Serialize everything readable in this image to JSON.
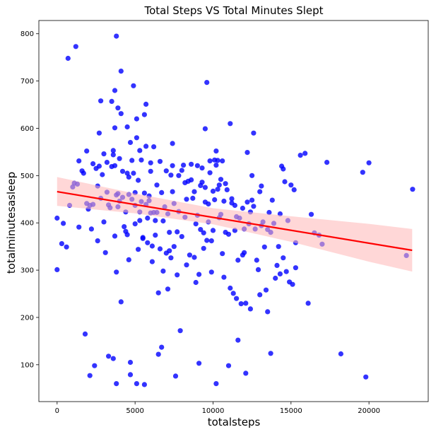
{
  "chart_data": {
    "type": "scatter",
    "title": "Total Steps VS Total Minutes Slept",
    "xlabel": "totalsteps",
    "ylabel": "totalminutesasleep",
    "xlim": [
      -1170,
      23800
    ],
    "ylim": [
      22,
      828
    ],
    "x_ticks": [
      0,
      5000,
      10000,
      15000,
      20000
    ],
    "y_ticks": [
      100,
      200,
      300,
      400,
      500,
      600,
      700,
      800
    ],
    "x_tick_labels": [
      "0",
      "5000",
      "10000",
      "15000",
      "20000"
    ],
    "y_tick_labels": [
      "100",
      "200",
      "300",
      "400",
      "500",
      "600",
      "700",
      "800"
    ],
    "grid": false,
    "colors": {
      "points": "#0000ff",
      "regression": "#ff0000",
      "ci_band": "#ffb6b6"
    },
    "regression": {
      "x": [
        0,
        22770
      ],
      "y": [
        466,
        342
      ]
    },
    "confidence_band": {
      "x": [
        0,
        5000,
        10000,
        15000,
        20000,
        22770
      ],
      "upper": [
        497,
        462,
        431,
        414,
        398,
        387
      ],
      "lower": [
        436,
        420,
        397,
        360,
        318,
        297
      ]
    },
    "points": [
      [
        0,
        301
      ],
      [
        0,
        410
      ],
      [
        300,
        356
      ],
      [
        400,
        399
      ],
      [
        600,
        349
      ],
      [
        700,
        748
      ],
      [
        800,
        437
      ],
      [
        1000,
        476
      ],
      [
        1100,
        484
      ],
      [
        1200,
        773
      ],
      [
        1300,
        482
      ],
      [
        1400,
        531
      ],
      [
        1400,
        391
      ],
      [
        1600,
        510
      ],
      [
        1700,
        505
      ],
      [
        1800,
        165
      ],
      [
        1900,
        552
      ],
      [
        1900,
        441
      ],
      [
        2000,
        429
      ],
      [
        2100,
        77
      ],
      [
        2100,
        437
      ],
      [
        2200,
        387
      ],
      [
        2300,
        439
      ],
      [
        2300,
        525
      ],
      [
        2400,
        98
      ],
      [
        2500,
        515
      ],
      [
        2600,
        478
      ],
      [
        2600,
        362
      ],
      [
        2700,
        520
      ],
      [
        2700,
        590
      ],
      [
        2800,
        658
      ],
      [
        2800,
        452
      ],
      [
        2900,
        502
      ],
      [
        3000,
        402
      ],
      [
        3000,
        546
      ],
      [
        3100,
        337
      ],
      [
        3200,
        528
      ],
      [
        3200,
        465
      ],
      [
        3300,
        118
      ],
      [
        3300,
        438
      ],
      [
        3400,
        432
      ],
      [
        3500,
        657
      ],
      [
        3500,
        519
      ],
      [
        3600,
        544
      ],
      [
        3600,
        553
      ],
      [
        3600,
        113
      ],
      [
        3700,
        680
      ],
      [
        3700,
        521
      ],
      [
        3700,
        372
      ],
      [
        3700,
        601
      ],
      [
        3800,
        795
      ],
      [
        3800,
        459
      ],
      [
        3800,
        60
      ],
      [
        3800,
        296
      ],
      [
        3900,
        462
      ],
      [
        3900,
        434
      ],
      [
        3900,
        643
      ],
      [
        4000,
        446
      ],
      [
        4000,
        536
      ],
      [
        4100,
        721
      ],
      [
        4100,
        631
      ],
      [
        4100,
        233
      ],
      [
        4200,
        454
      ],
      [
        4200,
        509
      ],
      [
        4300,
        392
      ],
      [
        4400,
        423
      ],
      [
        4400,
        382
      ],
      [
        4500,
        505
      ],
      [
        4500,
        375
      ],
      [
        4500,
        603
      ],
      [
        4600,
        497
      ],
      [
        4600,
        460
      ],
      [
        4600,
        322
      ],
      [
        4700,
        570
      ],
      [
        4700,
        79
      ],
      [
        4700,
        105
      ],
      [
        4800,
        450
      ],
      [
        4800,
        532
      ],
      [
        4900,
        690
      ],
      [
        4900,
        505
      ],
      [
        5000,
        437
      ],
      [
        5000,
        464
      ],
      [
        5000,
        398
      ],
      [
        5100,
        580
      ],
      [
        5100,
        620
      ],
      [
        5100,
        60
      ],
      [
        5200,
        490
      ],
      [
        5200,
        344
      ],
      [
        5300,
        405
      ],
      [
        5300,
        553
      ],
      [
        5300,
        423
      ],
      [
        5400,
        533
      ],
      [
        5400,
        445
      ],
      [
        5500,
        369
      ],
      [
        5500,
        367
      ],
      [
        5600,
        463
      ],
      [
        5600,
        629
      ],
      [
        5600,
        58
      ],
      [
        5700,
        651
      ],
      [
        5700,
        562
      ],
      [
        5700,
        439
      ],
      [
        5800,
        410
      ],
      [
        5800,
        358
      ],
      [
        5900,
        447
      ],
      [
        5900,
        457
      ],
      [
        6000,
        527
      ],
      [
        6000,
        509
      ],
      [
        6000,
        421
      ],
      [
        6100,
        351
      ],
      [
        6100,
        318
      ],
      [
        6200,
        422
      ],
      [
        6200,
        561
      ],
      [
        6300,
        405
      ],
      [
        6300,
        374
      ],
      [
        6400,
        422
      ],
      [
        6400,
        480
      ],
      [
        6500,
        252
      ],
      [
        6500,
        122
      ],
      [
        6600,
        530
      ],
      [
        6600,
        345
      ],
      [
        6700,
        137
      ],
      [
        6700,
        464
      ],
      [
        6800,
        298
      ],
      [
        6800,
        404
      ],
      [
        6900,
        434
      ],
      [
        7000,
        510
      ],
      [
        7000,
        336
      ],
      [
        7100,
        260
      ],
      [
        7100,
        419
      ],
      [
        7200,
        341
      ],
      [
        7200,
        380
      ],
      [
        7300,
        326
      ],
      [
        7300,
        501
      ],
      [
        7400,
        568
      ],
      [
        7400,
        521
      ],
      [
        7400,
        466
      ],
      [
        7500,
        350
      ],
      [
        7500,
        441
      ],
      [
        7600,
        76
      ],
      [
        7700,
        290
      ],
      [
        7700,
        381
      ],
      [
        7800,
        424
      ],
      [
        7800,
        500
      ],
      [
        7900,
        172
      ],
      [
        8000,
        511
      ],
      [
        8000,
        371
      ],
      [
        8100,
        522
      ],
      [
        8200,
        412
      ],
      [
        8200,
        485
      ],
      [
        8300,
        311
      ],
      [
        8300,
        450
      ],
      [
        8400,
        488
      ],
      [
        8500,
        332
      ],
      [
        8600,
        524
      ],
      [
        8600,
        491
      ],
      [
        8700,
        452
      ],
      [
        8800,
        327
      ],
      [
        8800,
        466
      ],
      [
        8900,
        398
      ],
      [
        8900,
        274
      ],
      [
        9000,
        521
      ],
      [
        9000,
        416
      ],
      [
        9100,
        103
      ],
      [
        9100,
        291
      ],
      [
        9200,
        386
      ],
      [
        9200,
        479
      ],
      [
        9300,
        516
      ],
      [
        9300,
        486
      ],
      [
        9400,
        346
      ],
      [
        9400,
        379
      ],
      [
        9500,
        599
      ],
      [
        9500,
        444
      ],
      [
        9500,
        475
      ],
      [
        9600,
        363
      ],
      [
        9600,
        697
      ],
      [
        9700,
        440
      ],
      [
        9700,
        402
      ],
      [
        9800,
        531
      ],
      [
        9800,
        506
      ],
      [
        9900,
        362
      ],
      [
        9900,
        296
      ],
      [
        10000,
        467
      ],
      [
        10000,
        384
      ],
      [
        10100,
        449
      ],
      [
        10100,
        533
      ],
      [
        10200,
        60
      ],
      [
        10200,
        522
      ],
      [
        10200,
        552
      ],
      [
        10300,
        532
      ],
      [
        10300,
        471
      ],
      [
        10400,
        411
      ],
      [
        10400,
        480
      ],
      [
        10500,
        492
      ],
      [
        10500,
        418
      ],
      [
        10600,
        335
      ],
      [
        10600,
        531
      ],
      [
        10700,
        285
      ],
      [
        10700,
        446
      ],
      [
        10800,
        483
      ],
      [
        10800,
        380
      ],
      [
        10900,
        470
      ],
      [
        11000,
        98
      ],
      [
        11000,
        376
      ],
      [
        11100,
        262
      ],
      [
        11100,
        610
      ],
      [
        11200,
        442
      ],
      [
        11200,
        451
      ],
      [
        11300,
        251
      ],
      [
        11400,
        437
      ],
      [
        11400,
        384
      ],
      [
        11500,
        413
      ],
      [
        11500,
        240
      ],
      [
        11600,
        321
      ],
      [
        11600,
        152
      ],
      [
        11700,
        410
      ],
      [
        11800,
        229
      ],
      [
        11900,
        332
      ],
      [
        11900,
        431
      ],
      [
        12000,
        337
      ],
      [
        12000,
        387
      ],
      [
        12100,
        230
      ],
      [
        12100,
        82
      ],
      [
        12200,
        549
      ],
      [
        12200,
        444
      ],
      [
        12300,
        398
      ],
      [
        12400,
        423
      ],
      [
        12400,
        218
      ],
      [
        12500,
        448
      ],
      [
        12500,
        500
      ],
      [
        12600,
        590
      ],
      [
        12600,
        435
      ],
      [
        12700,
        387
      ],
      [
        12800,
        321
      ],
      [
        12900,
        301
      ],
      [
        13000,
        466
      ],
      [
        13000,
        248
      ],
      [
        13100,
        394
      ],
      [
        13100,
        478
      ],
      [
        13200,
        402
      ],
      [
        13300,
        349
      ],
      [
        13400,
        258
      ],
      [
        13500,
        212
      ],
      [
        13500,
        386
      ],
      [
        13600,
        422
      ],
      [
        13700,
        124
      ],
      [
        13700,
        380
      ],
      [
        13800,
        448
      ],
      [
        13900,
        399
      ],
      [
        14000,
        283
      ],
      [
        14100,
        310
      ],
      [
        14200,
        350
      ],
      [
        14300,
        292
      ],
      [
        14300,
        419
      ],
      [
        14400,
        520
      ],
      [
        14500,
        514
      ],
      [
        14500,
        326
      ],
      [
        14600,
        487
      ],
      [
        14700,
        297
      ],
      [
        14800,
        405
      ],
      [
        14900,
        275
      ],
      [
        15000,
        480
      ],
      [
        15100,
        270
      ],
      [
        15200,
        470
      ],
      [
        15300,
        305
      ],
      [
        15300,
        358
      ],
      [
        15600,
        543
      ],
      [
        15900,
        547
      ],
      [
        16100,
        230
      ],
      [
        16300,
        418
      ],
      [
        16500,
        379
      ],
      [
        16800,
        374
      ],
      [
        17000,
        355
      ],
      [
        17300,
        528
      ],
      [
        18200,
        123
      ],
      [
        19600,
        507
      ],
      [
        19800,
        74
      ],
      [
        20000,
        527
      ],
      [
        22400,
        331
      ],
      [
        22800,
        471
      ]
    ]
  }
}
